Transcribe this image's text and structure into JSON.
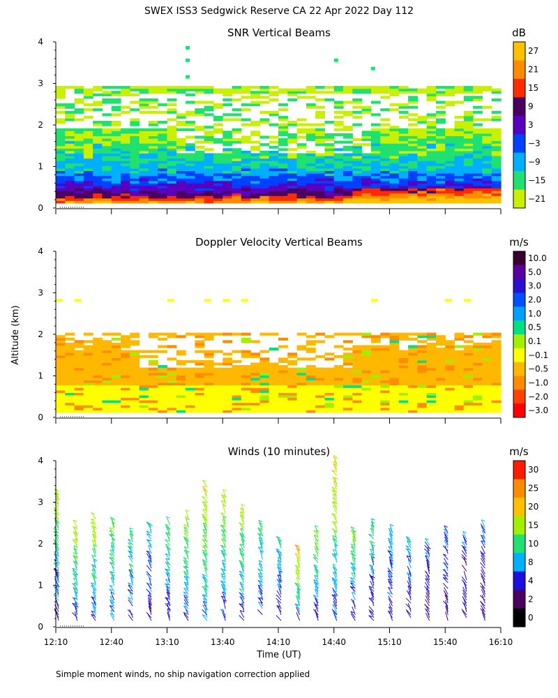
{
  "figure": {
    "title": "SWEX ISS3 Sedgwick Reserve CA  22 Apr 2022 Day 112",
    "ylabel": "Altitude (km)",
    "xlabel": "Time (UT)",
    "footnote": "Simple moment winds, no ship navigation correction applied"
  },
  "chart_data": [
    {
      "type": "heatmap",
      "title": "SNR Vertical Beams",
      "unit": "dB",
      "xlim": [
        "12:10",
        "16:10"
      ],
      "ylim": [
        0,
        4
      ],
      "yticks": [
        "0",
        "1",
        "2",
        "3",
        "4"
      ],
      "colorbar": {
        "labels": [
          "27",
          "21",
          "15",
          "9",
          "3",
          "−3",
          "−9",
          "−15",
          "−21"
        ],
        "colors": [
          "#ffc000",
          "#ff8c00",
          "#ff2a00",
          "#4a0060",
          "#5a00c0",
          "#0040ff",
          "#00b0ff",
          "#20e070",
          "#c8f000"
        ]
      },
      "profile": [
        {
          "altitude_km": 0.1,
          "snr_db": 24
        },
        {
          "altitude_km": 0.3,
          "snr_db": 9
        },
        {
          "altitude_km": 0.5,
          "snr_db": 0
        },
        {
          "altitude_km": 0.8,
          "snr_db": -8
        },
        {
          "altitude_km": 1.2,
          "snr_db": -14
        },
        {
          "altitude_km": 1.7,
          "snr_db": -18
        },
        {
          "altitude_km": 2.8,
          "snr_db": -20
        }
      ]
    },
    {
      "type": "heatmap",
      "title": "Doppler Velocity Vertical Beams",
      "unit": "m/s",
      "xlim": [
        "12:10",
        "16:10"
      ],
      "ylim": [
        0,
        4
      ],
      "yticks": [
        "0",
        "1",
        "2",
        "3",
        "4"
      ],
      "colorbar": {
        "labels": [
          "10.0",
          "5.0",
          "3.0",
          "2.0",
          "1.0",
          "0.5",
          "0.1",
          "−0.1",
          "−0.5",
          "−1.0",
          "−2.0",
          "−3.0"
        ],
        "colors": [
          "#3a0030",
          "#5a00a0",
          "#2a10d0",
          "#0050ff",
          "#00a0ff",
          "#00e080",
          "#a0f000",
          "#ffff00",
          "#ffb800",
          "#ff8c00",
          "#ff4000",
          "#ff0000"
        ]
      },
      "profile": [
        {
          "altitude_km": 0.3,
          "velocity_ms": -0.1
        },
        {
          "altitude_km": 1.0,
          "velocity_ms": -0.5
        },
        {
          "altitude_km": 1.8,
          "velocity_ms": -0.5
        },
        {
          "altitude_km": 2.8,
          "velocity_ms": -0.1
        }
      ]
    },
    {
      "type": "scatter",
      "title": "Winds (10 minutes)",
      "unit": "m/s",
      "xlim": [
        "12:10",
        "16:10"
      ],
      "ylim": [
        0,
        4
      ],
      "yticks": [
        "0",
        "1",
        "2",
        "3",
        "4"
      ],
      "xticks": [
        "12:10",
        "12:40",
        "13:10",
        "13:40",
        "14:10",
        "14:40",
        "15:10",
        "15:40",
        "16:10"
      ],
      "colorbar": {
        "labels": [
          "30",
          "25",
          "20",
          "15",
          "10",
          "8",
          "4",
          "2",
          "0"
        ],
        "colors": [
          "#ff1a00",
          "#ff8c00",
          "#ffc000",
          "#a0f000",
          "#20e070",
          "#00b0ff",
          "#1a10e0",
          "#4a0060",
          "#000000"
        ]
      },
      "profiles": [
        {
          "time": "12:10",
          "low_speed_ms": 3,
          "high_speed_ms": 14,
          "top_km": 3.2
        },
        {
          "time": "12:20",
          "low_speed_ms": 4,
          "high_speed_ms": 16,
          "top_km": 2.4
        },
        {
          "time": "12:30",
          "low_speed_ms": 4,
          "high_speed_ms": 15,
          "top_km": 2.6
        },
        {
          "time": "12:40",
          "low_speed_ms": 5,
          "high_speed_ms": 13,
          "top_km": 2.5
        },
        {
          "time": "12:50",
          "low_speed_ms": 4,
          "high_speed_ms": 10,
          "top_km": 2.2
        },
        {
          "time": "13:00",
          "low_speed_ms": 3,
          "high_speed_ms": 8,
          "top_km": 2.4
        },
        {
          "time": "13:10",
          "low_speed_ms": 3,
          "high_speed_ms": 12,
          "top_km": 2.5
        },
        {
          "time": "13:20",
          "low_speed_ms": 4,
          "high_speed_ms": 14,
          "top_km": 2.6
        },
        {
          "time": "13:30",
          "low_speed_ms": 5,
          "high_speed_ms": 18,
          "top_km": 3.4
        },
        {
          "time": "13:40",
          "low_speed_ms": 4,
          "high_speed_ms": 16,
          "top_km": 3.1
        },
        {
          "time": "13:50",
          "low_speed_ms": 4,
          "high_speed_ms": 15,
          "top_km": 2.8
        },
        {
          "time": "14:00",
          "low_speed_ms": 3,
          "high_speed_ms": 12,
          "top_km": 2.4
        },
        {
          "time": "14:10",
          "low_speed_ms": 3,
          "high_speed_ms": 10,
          "top_km": 2.1
        },
        {
          "time": "14:20",
          "low_speed_ms": 2,
          "high_speed_ms": 22,
          "top_km": 1.9
        },
        {
          "time": "14:30",
          "low_speed_ms": 3,
          "high_speed_ms": 14,
          "top_km": 2.3
        },
        {
          "time": "14:40",
          "low_speed_ms": 4,
          "high_speed_ms": 18,
          "top_km": 4.0
        },
        {
          "time": "14:50",
          "low_speed_ms": 3,
          "high_speed_ms": 14,
          "top_km": 2.3
        },
        {
          "time": "15:00",
          "low_speed_ms": 3,
          "high_speed_ms": 10,
          "top_km": 2.4
        },
        {
          "time": "15:10",
          "low_speed_ms": 3,
          "high_speed_ms": 9,
          "top_km": 2.3
        },
        {
          "time": "15:20",
          "low_speed_ms": 2,
          "high_speed_ms": 8,
          "top_km": 2.1
        },
        {
          "time": "15:30",
          "low_speed_ms": 2,
          "high_speed_ms": 6,
          "top_km": 2.0
        },
        {
          "time": "15:40",
          "low_speed_ms": 2,
          "high_speed_ms": 6,
          "top_km": 2.3
        },
        {
          "time": "15:50",
          "low_speed_ms": 2,
          "high_speed_ms": 5,
          "top_km": 2.2
        },
        {
          "time": "16:00",
          "low_speed_ms": 2,
          "high_speed_ms": 5,
          "top_km": 2.4
        }
      ]
    }
  ]
}
